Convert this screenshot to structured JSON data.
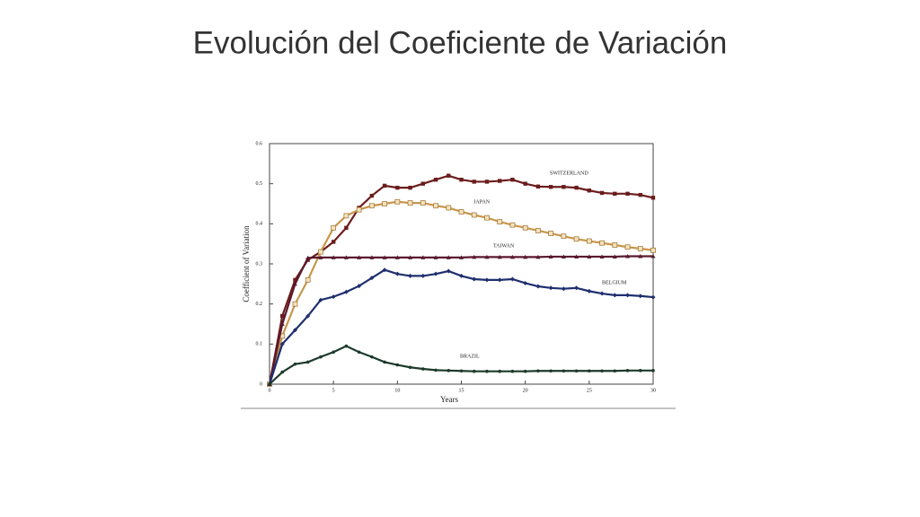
{
  "chart_data": {
    "type": "line",
    "title": "Evolución del Coeficiente de Variación",
    "x_label": "Years",
    "y_label": "Coefficient of Variation",
    "x": [
      0,
      1,
      2,
      3,
      4,
      5,
      6,
      7,
      8,
      9,
      10,
      11,
      12,
      13,
      14,
      15,
      16,
      17,
      18,
      19,
      20,
      21,
      22,
      23,
      24,
      25,
      26,
      27,
      28,
      29,
      30
    ],
    "xlim": [
      0,
      30
    ],
    "xticks": [
      0,
      5,
      10,
      15,
      20,
      25,
      30
    ],
    "ylim": [
      0,
      0.6
    ],
    "yticks": [
      0,
      0.1,
      0.2,
      0.3,
      0.4,
      0.5,
      0.6
    ],
    "series": [
      {
        "name": "SWITZERLAND",
        "color": "#6b1c1c",
        "marker": "square",
        "values": [
          0,
          0.17,
          0.26,
          0.31,
          0.33,
          0.355,
          0.39,
          0.44,
          0.47,
          0.495,
          0.49,
          0.49,
          0.5,
          0.51,
          0.52,
          0.51,
          0.505,
          0.505,
          0.507,
          0.51,
          0.5,
          0.493,
          0.492,
          0.492,
          0.49,
          0.483,
          0.477,
          0.475,
          0.475,
          0.472,
          0.465
        ]
      },
      {
        "name": "JAPAN",
        "color": "#c8964a",
        "marker": "open-square",
        "values": [
          0,
          0.12,
          0.2,
          0.26,
          0.33,
          0.39,
          0.42,
          0.435,
          0.445,
          0.45,
          0.455,
          0.452,
          0.452,
          0.445,
          0.44,
          0.43,
          0.422,
          0.415,
          0.405,
          0.397,
          0.39,
          0.383,
          0.376,
          0.369,
          0.362,
          0.357,
          0.352,
          0.347,
          0.342,
          0.338,
          0.334
        ]
      },
      {
        "name": "TAIWAN",
        "color": "#5a1a2e",
        "marker": "triangle",
        "values": [
          0,
          0.15,
          0.25,
          0.315,
          0.316,
          0.316,
          0.316,
          0.316,
          0.316,
          0.316,
          0.316,
          0.316,
          0.316,
          0.316,
          0.316,
          0.316,
          0.317,
          0.317,
          0.317,
          0.317,
          0.317,
          0.317,
          0.318,
          0.318,
          0.318,
          0.318,
          0.318,
          0.318,
          0.319,
          0.319,
          0.319
        ]
      },
      {
        "name": "BELGIUM",
        "color": "#1f2f6e",
        "marker": "diamond",
        "values": [
          0,
          0.1,
          0.135,
          0.17,
          0.21,
          0.218,
          0.23,
          0.245,
          0.265,
          0.285,
          0.275,
          0.27,
          0.27,
          0.275,
          0.282,
          0.27,
          0.262,
          0.26,
          0.26,
          0.262,
          0.252,
          0.244,
          0.24,
          0.238,
          0.24,
          0.232,
          0.226,
          0.222,
          0.222,
          0.22,
          0.217
        ]
      },
      {
        "name": "BRAZIL",
        "color": "#1c3a2c",
        "marker": "dot",
        "values": [
          0,
          0.03,
          0.05,
          0.055,
          0.068,
          0.08,
          0.095,
          0.08,
          0.068,
          0.055,
          0.048,
          0.042,
          0.038,
          0.035,
          0.034,
          0.033,
          0.032,
          0.032,
          0.032,
          0.032,
          0.032,
          0.033,
          0.033,
          0.033,
          0.033,
          0.033,
          0.033,
          0.033,
          0.034,
          0.034,
          0.034
        ]
      }
    ]
  }
}
